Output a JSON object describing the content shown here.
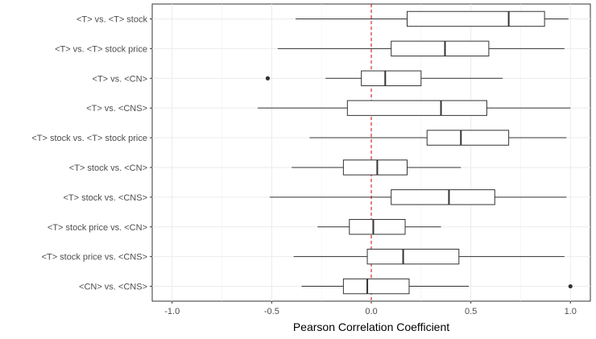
{
  "chart_data": {
    "type": "boxplot",
    "orientation": "horizontal",
    "title": "",
    "xlabel": "Pearson Correlation Coefficient",
    "ylabel": "",
    "xlim": [
      -1.1,
      1.1
    ],
    "x_ticks": [
      -1.0,
      -0.5,
      0.0,
      0.5,
      1.0
    ],
    "x_tick_labels": [
      "-1.0",
      "-0.5",
      "0.0",
      "0.5",
      "1.0"
    ],
    "grid": true,
    "reference_line": {
      "x": 0,
      "style": "dashed",
      "color": "#cc0000"
    },
    "categories": [
      "<T> vs. <T> stock",
      "<T> vs. <T> stock price",
      "<T> vs. <CN>",
      "<T> vs. <CNS>",
      "<T> stock vs. <T> stock price",
      "<T> stock vs. <CN>",
      "<T> stock vs. <CNS>",
      "<T> stock price vs. <CN>",
      "<T> stock price vs. <CNS>",
      "<CN> vs. <CNS>"
    ],
    "boxes": [
      {
        "whisker_low": -0.38,
        "q1": 0.18,
        "median": 0.69,
        "q3": 0.87,
        "whisker_high": 0.99,
        "outliers": []
      },
      {
        "whisker_low": -0.47,
        "q1": 0.1,
        "median": 0.37,
        "q3": 0.59,
        "whisker_high": 0.97,
        "outliers": []
      },
      {
        "whisker_low": -0.23,
        "q1": -0.05,
        "median": 0.07,
        "q3": 0.25,
        "whisker_high": 0.66,
        "outliers": [
          -0.52
        ]
      },
      {
        "whisker_low": -0.57,
        "q1": -0.12,
        "median": 0.35,
        "q3": 0.58,
        "whisker_high": 1.0,
        "outliers": []
      },
      {
        "whisker_low": -0.31,
        "q1": 0.28,
        "median": 0.45,
        "q3": 0.69,
        "whisker_high": 0.98,
        "outliers": []
      },
      {
        "whisker_low": -0.4,
        "q1": -0.14,
        "median": 0.03,
        "q3": 0.18,
        "whisker_high": 0.45,
        "outliers": []
      },
      {
        "whisker_low": -0.51,
        "q1": 0.1,
        "median": 0.39,
        "q3": 0.62,
        "whisker_high": 0.98,
        "outliers": []
      },
      {
        "whisker_low": -0.27,
        "q1": -0.11,
        "median": 0.01,
        "q3": 0.17,
        "whisker_high": 0.35,
        "outliers": []
      },
      {
        "whisker_low": -0.39,
        "q1": -0.02,
        "median": 0.16,
        "q3": 0.44,
        "whisker_high": 0.97,
        "outliers": []
      },
      {
        "whisker_low": -0.35,
        "q1": -0.14,
        "median": -0.02,
        "q3": 0.19,
        "whisker_high": 0.49,
        "outliers": [
          1.0
        ]
      }
    ]
  }
}
